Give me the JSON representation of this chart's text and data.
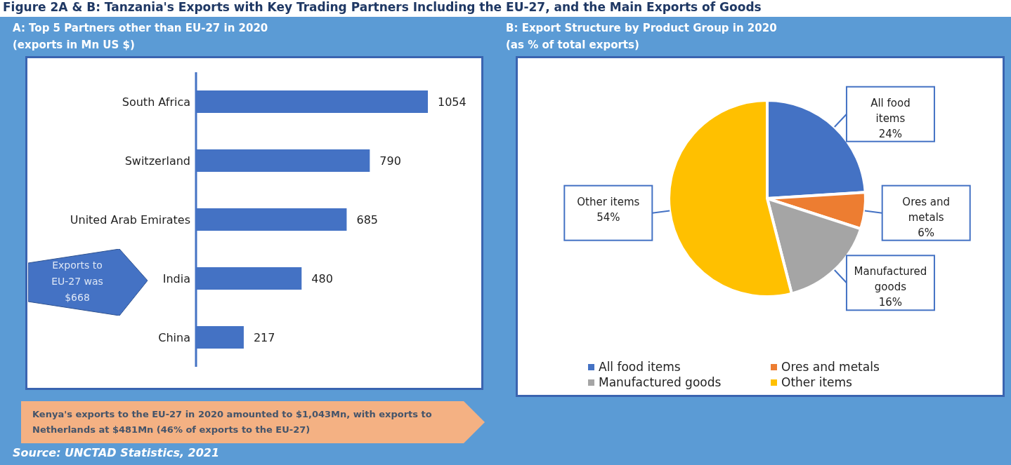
{
  "chart_data": [
    {
      "type": "bar",
      "orientation": "horizontal",
      "title": "A: Top 5 Partners other than EU-27 in 2020",
      "subtitle": "(exports in Mn US $)",
      "categories": [
        "South Africa",
        "Switzerland",
        "United Arab Emirates",
        "India",
        "China"
      ],
      "values": [
        1054,
        790,
        685,
        480,
        217
      ],
      "color": "#4472c4",
      "data_labels": true,
      "annotations": [
        "Figure 2A & B: Tanzania's Exports with Key Trading Partners Including the EU-27, and the Main Exports of Goods",
        "Exports to EU-27 was $668",
        "Kenya's exports to the EU-27 in 2020 amounted to $1,043Mn, with exports to Netherlands at $481Mn (46% of exports to the EU-27)",
        "Source: UNCTAD Statistics, 2021"
      ]
    },
    {
      "type": "pie",
      "title": "B: Export Structure by Product Group in 2020",
      "subtitle": "(as % of total exports)",
      "categories": [
        "All food items",
        "Ores and metals",
        "Manufactured goods",
        "Other items"
      ],
      "values": [
        24,
        6,
        16,
        54
      ],
      "value_labels": [
        "24%",
        "6%",
        "16%",
        "54%"
      ],
      "colors": [
        "#4472c4",
        "#ed7d31",
        "#a5a5a5",
        "#ffc000"
      ],
      "legend": "bottom"
    }
  ]
}
